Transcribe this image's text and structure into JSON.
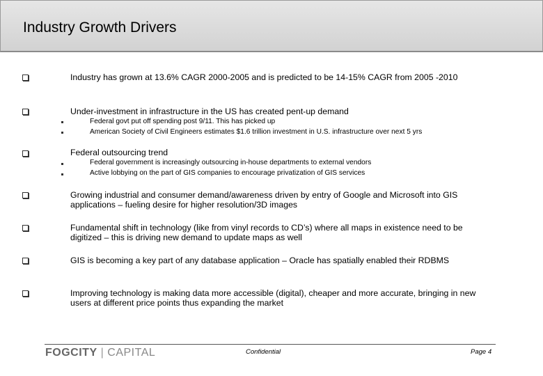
{
  "header": {
    "title": "Industry Growth Drivers"
  },
  "bullets": [
    {
      "text": "Industry has grown at 13.6% CAGR 2000-2005 and is predicted to be 14-15% CAGR from 2005 -2010"
    },
    {
      "text": "Under-investment in infrastructure in the US has created pent-up demand",
      "sub": [
        "Federal govt put off spending post 9/11.  This has picked up",
        "American Society of Civil Engineers estimates $1.6 trillion investment in U.S. infrastructure over next 5 yrs"
      ]
    },
    {
      "text": "Federal outsourcing trend",
      "sub": [
        "Federal government is increasingly outsourcing in-house departments to external vendors",
        "Active lobbying on the part of GIS companies to encourage privatization of GIS services"
      ]
    },
    {
      "text": "Growing industrial and consumer demand/awareness driven by entry of Google and Microsoft into GIS applications – fueling desire for higher resolution/3D images"
    },
    {
      "text": "Fundamental shift in technology (like from vinyl records to CD’s) where all maps in existence need to be digitized – this is driving new demand to update maps as well"
    },
    {
      "text": "GIS is becoming a key part of any database application – Oracle has spatially enabled their RDBMS"
    },
    {
      "text": "Improving technology is making data more accessible (digital), cheaper and more accurate, bringing in new users at different price points thus expanding the market"
    }
  ],
  "footer": {
    "logo_main": "FOGCITY",
    "logo_separator": "|",
    "logo_sub": "CAPITAL",
    "confidential": "Confidential",
    "page": "Page 4"
  }
}
